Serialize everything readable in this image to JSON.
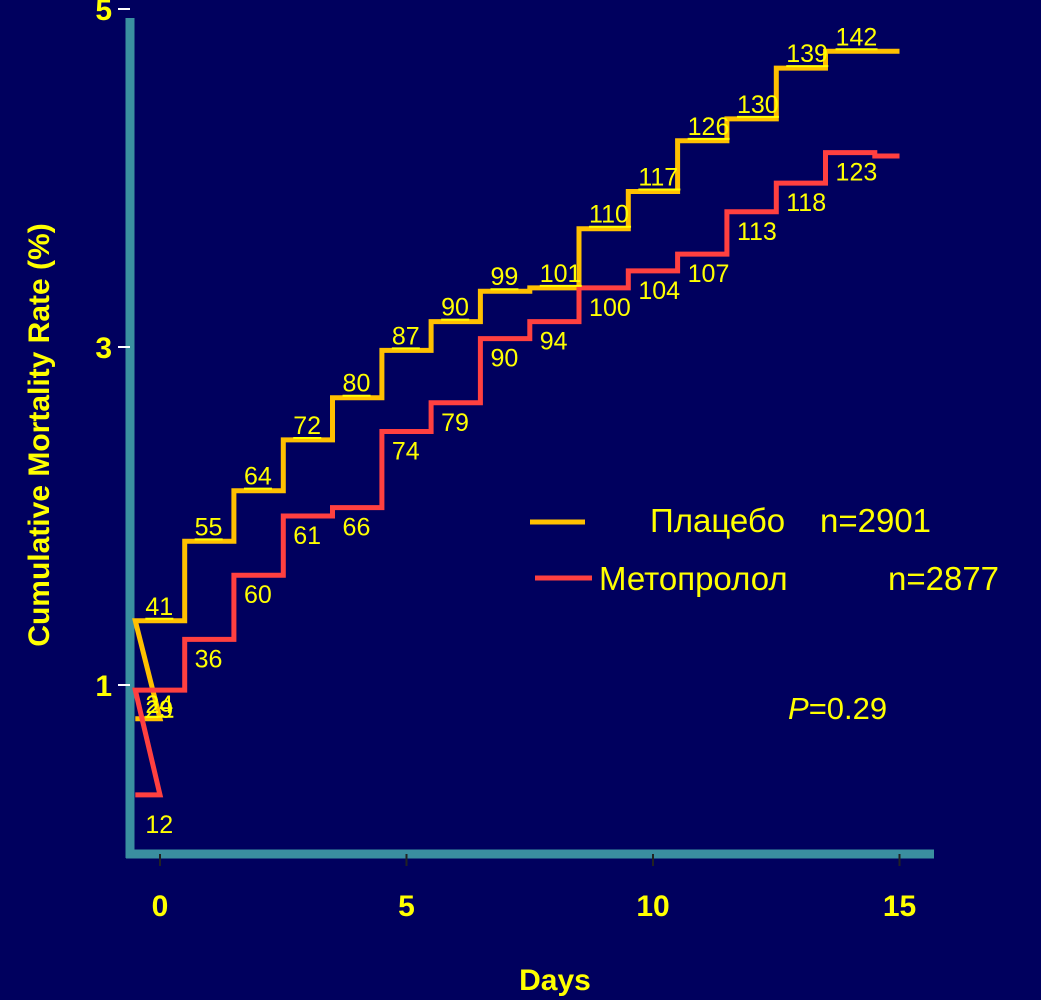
{
  "chart_data": {
    "type": "line",
    "step": true,
    "xlabel": "Days",
    "ylabel": "Cumulative Mortality Rate (%)",
    "x_ticks": [
      0,
      5,
      10,
      15
    ],
    "y_ticks": [
      1,
      3,
      5
    ],
    "xlim": [
      -0.6,
      15.6
    ],
    "ylim": [
      0,
      5
    ],
    "grid": false,
    "legend_position": "right",
    "colors": {
      "background": "#00005e",
      "axis": "#3a8fa0",
      "text": "#ffff00"
    },
    "series": [
      {
        "name": "Плацебо",
        "n": "n=2901",
        "color": "#ffc000",
        "x": [
          -0.5,
          0,
          1,
          2,
          3,
          4,
          5,
          6,
          7,
          8,
          9,
          10,
          11,
          12,
          13,
          14,
          15
        ],
        "y": [
          0.8,
          1.38,
          1.85,
          2.15,
          2.45,
          2.7,
          2.98,
          3.15,
          3.33,
          3.35,
          3.7,
          3.92,
          4.22,
          4.35,
          4.65,
          4.75,
          4.75
        ],
        "labels": [
          "24",
          "41",
          "55",
          "64",
          "72",
          "80",
          "87",
          "90",
          "99",
          "101",
          "110",
          "117",
          "126",
          "130",
          "139",
          "142"
        ]
      },
      {
        "name": "Метопролол",
        "n": "n=2877",
        "color": "#ff4040",
        "x": [
          -0.5,
          0,
          1,
          2,
          3,
          4,
          5,
          6,
          7,
          8,
          9,
          10,
          11,
          12,
          13,
          14,
          15
        ],
        "y": [
          0.35,
          0.97,
          1.27,
          1.65,
          2.0,
          2.05,
          2.5,
          2.67,
          3.05,
          3.15,
          3.35,
          3.45,
          3.55,
          3.8,
          3.97,
          4.15,
          4.13
        ],
        "labels": [
          "12",
          "29",
          "36",
          "60",
          "61",
          "66",
          "74",
          "79",
          "90",
          "94",
          "100",
          "104",
          "107",
          "113",
          "118",
          "123"
        ]
      }
    ],
    "annotations": {
      "p_italic": "P",
      "p_rest": "=0.29"
    }
  }
}
